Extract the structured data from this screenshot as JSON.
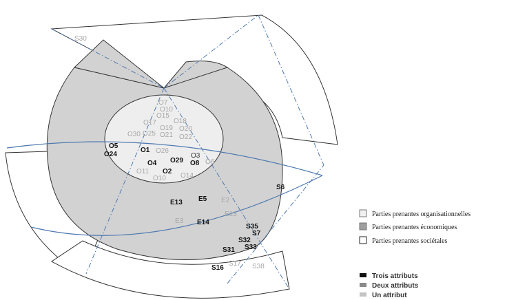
{
  "legend_groups": [
    {
      "label": "Parties prenantes organisationnelles",
      "swatch": "#f0f0f0",
      "border": "#777777"
    },
    {
      "label": "Parties prenantes économiques",
      "swatch": "#9e9e9e",
      "border": "#777777"
    },
    {
      "label": "Parties prenantes sociétales",
      "swatch": "#ffffff",
      "border": "#222222"
    }
  ],
  "legend_attributes": [
    {
      "label": "Trois attributs",
      "color": "#111111"
    },
    {
      "label": "Deux attributs",
      "color": "#8a8a8a"
    },
    {
      "label": "Un attribut",
      "color": "#c4c4c4"
    }
  ],
  "colors": {
    "organisational_fill": "#eeeeee",
    "economic_fill": "#d2d2d2",
    "societal_fill": "#ffffff",
    "outline": "#333333",
    "line_blue": "#4e79b0"
  },
  "labels": {
    "s30": "S30",
    "o7": "O7",
    "o10a": "O10",
    "o15": "O15",
    "o17": "O17",
    "o18": "O18",
    "o19": "O19",
    "o20": "O20",
    "o30": "O30",
    "o25": "O25",
    "o21": "O21",
    "o22": "O22",
    "o5": "O5",
    "o24": "O24",
    "o1": "O1",
    "o26": "O26",
    "o3": "O3",
    "o6": "O6",
    "o4": "O4",
    "o29": "O29",
    "o8": "O8",
    "o11": "O11",
    "o2": "O2",
    "o10b": "O10",
    "o14": "O14",
    "e13a": "E13",
    "e5": "E5",
    "e2": "E2",
    "e13b": "E13",
    "e3": "E3",
    "e14": "E14",
    "s6": "S6",
    "s35": "S35",
    "s7": "S7",
    "s32": "S32",
    "s33": "S33",
    "s31": "S31",
    "s16": "S16",
    "s17": "S17",
    "s38": "S38"
  }
}
